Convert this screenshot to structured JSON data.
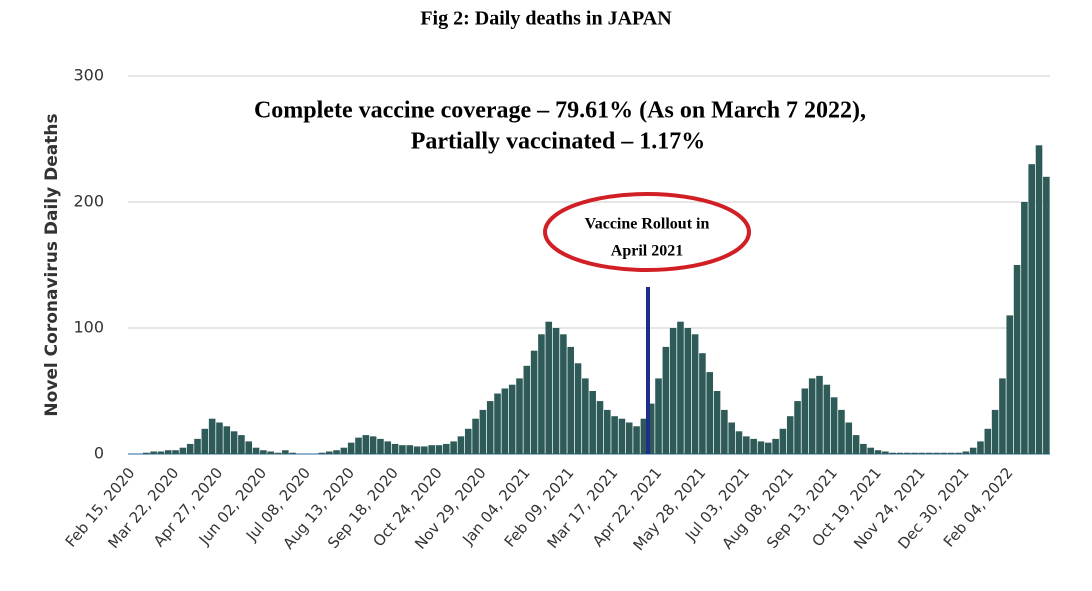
{
  "chart_data": {
    "type": "bar",
    "title": "Fig 2: Daily deaths in JAPAN",
    "y_label": "Novel Coronavirus Daily Deaths",
    "annotations": [
      "Complete vaccine coverage – 79.61% (As on March 7 2022),",
      "Partially vaccinated – 1.17%",
      "Vaccine Rollout in",
      "April 2021"
    ],
    "categories": [
      "Feb 15, 2020",
      null,
      null,
      null,
      null,
      null,
      "Mar 22, 2020",
      null,
      null,
      null,
      null,
      null,
      "Apr 27, 2020",
      null,
      null,
      null,
      null,
      null,
      "Jun 02, 2020",
      null,
      null,
      null,
      null,
      null,
      "Jul 08, 2020",
      null,
      null,
      null,
      null,
      null,
      "Aug 13, 2020",
      null,
      null,
      null,
      null,
      null,
      "Sep 18, 2020",
      null,
      null,
      null,
      null,
      null,
      "Oct 24, 2020",
      null,
      null,
      null,
      null,
      null,
      "Nov 29, 2020",
      null,
      null,
      null,
      null,
      null,
      "Jan 04, 2021",
      null,
      null,
      null,
      null,
      null,
      "Feb 09, 2021",
      null,
      null,
      null,
      null,
      null,
      "Mar 17, 2021",
      null,
      null,
      null,
      null,
      null,
      "Apr 22, 2021",
      null,
      null,
      null,
      null,
      null,
      "May 28, 2021",
      null,
      null,
      null,
      null,
      null,
      "Jul 03, 2021",
      null,
      null,
      null,
      null,
      null,
      "Aug 08, 2021",
      null,
      null,
      null,
      null,
      null,
      "Sep 13, 2021",
      null,
      null,
      null,
      null,
      null,
      "Oct 19, 2021",
      null,
      null,
      null,
      null,
      null,
      "Nov 24, 2021",
      null,
      null,
      null,
      null,
      null,
      "Dec 30, 2021",
      null,
      null,
      null,
      null,
      null,
      "Feb 04, 2022",
      null,
      null,
      null,
      null,
      null
    ],
    "values": [
      0,
      0,
      1,
      2,
      2,
      3,
      3,
      5,
      8,
      12,
      20,
      28,
      25,
      22,
      18,
      15,
      10,
      5,
      3,
      2,
      1,
      3,
      1,
      0,
      0,
      0,
      1,
      2,
      3,
      5,
      9,
      13,
      15,
      14,
      12,
      10,
      8,
      7,
      7,
      6,
      6,
      7,
      7,
      8,
      10,
      14,
      20,
      28,
      35,
      42,
      48,
      52,
      55,
      60,
      70,
      82,
      95,
      105,
      100,
      95,
      85,
      72,
      60,
      50,
      42,
      35,
      30,
      28,
      25,
      22,
      28,
      40,
      60,
      85,
      100,
      105,
      100,
      95,
      80,
      65,
      50,
      35,
      25,
      18,
      14,
      12,
      10,
      9,
      12,
      20,
      30,
      42,
      52,
      60,
      62,
      55,
      45,
      35,
      25,
      15,
      8,
      5,
      3,
      2,
      1,
      1,
      1,
      1,
      1,
      1,
      1,
      1,
      1,
      1,
      2,
      5,
      10,
      20,
      35,
      60,
      110,
      150,
      200,
      230,
      245,
      220
    ],
    "color": "#2e5a58",
    "ylim": [
      0,
      300
    ],
    "yticks": [
      0,
      100,
      200,
      300
    ],
    "grid": true
  }
}
